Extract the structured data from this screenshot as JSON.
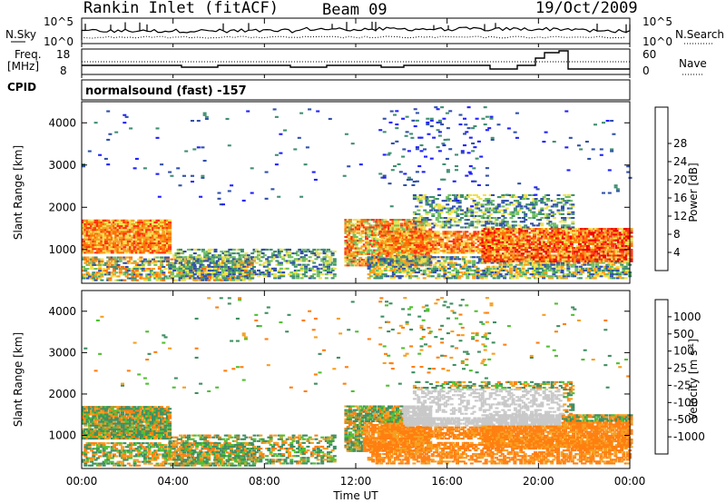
{
  "title": {
    "station": "Rankin Inlet (fitACF)",
    "beam": "Beam 09",
    "date": "19/Oct/2009"
  },
  "top_panels": {
    "nsky_label": "N.Sky",
    "nsky_ticks": [
      "10^5",
      "10^0"
    ],
    "nsearch_label": "N.Search",
    "nsearch_ticks": [
      "10^5",
      "10^0"
    ],
    "freq_label": "Freq.",
    "freq_unit": "[MHz]",
    "freq_ticks": [
      "18",
      "8"
    ],
    "nave_label": "Nave",
    "nave_ticks": [
      "60",
      "0"
    ],
    "cpid_label": "CPID",
    "cpid_value": "normalsound (fast) -157"
  },
  "colors": {
    "power_scale": [
      "#2020ff",
      "#3050a8",
      "#3f8f70",
      "#6fbf60",
      "#f0e050",
      "#f5a020",
      "#ff7000",
      "#ff3010",
      "#ee0000"
    ],
    "velocity_scale": [
      "#2030c0",
      "#2f68a0",
      "#3f8f60",
      "#50c030",
      "#c8c8c8",
      "#f5a020",
      "#ff7f10",
      "#ff4010",
      "#ee0000"
    ]
  },
  "chart_data": [
    {
      "type": "heatmap",
      "name": "power",
      "xlabel": "Time UT",
      "ylabel": "Slant Range [km]",
      "x_ticks": [
        "00:00",
        "04:00",
        "08:00",
        "12:00",
        "16:00",
        "20:00",
        "00:00"
      ],
      "y_ticks": [
        1000,
        2000,
        3000,
        4000
      ],
      "xlim_hours": [
        0,
        24
      ],
      "ylim_km": [
        200,
        4500
      ],
      "colorbar": {
        "label": "Power [dB]",
        "ticks": [
          4,
          8,
          12,
          16,
          20,
          24,
          28
        ],
        "range": [
          0,
          32
        ]
      }
    },
    {
      "type": "heatmap",
      "name": "velocity",
      "xlabel": "Time UT",
      "ylabel": "Slant Range [km]",
      "x_ticks": [
        "00:00",
        "04:00",
        "08:00",
        "12:00",
        "16:00",
        "20:00",
        "00:00"
      ],
      "y_ticks": [
        1000,
        2000,
        3000,
        4000
      ],
      "xlim_hours": [
        0,
        24
      ],
      "ylim_km": [
        200,
        4500
      ],
      "colorbar": {
        "label": "Velocity [m s",
        "label_exponent": "-1",
        "label_close": "]",
        "ticks": [
          "1000",
          "500",
          "100",
          "25",
          "-25",
          "-100",
          "-500",
          "-1000"
        ]
      }
    }
  ]
}
